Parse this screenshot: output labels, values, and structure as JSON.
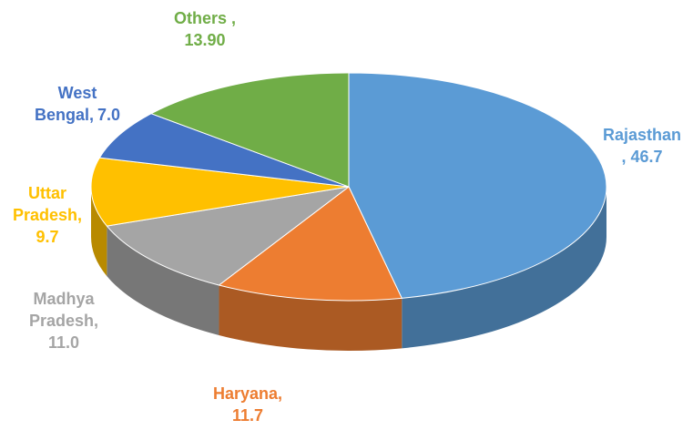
{
  "chart_data": {
    "type": "pie",
    "categories": [
      "Rajasthan",
      "Haryana,",
      "Madhya Pradesh,",
      "Uttar Pradesh,",
      "West Bengal,",
      "Others ,"
    ],
    "values": [
      46.7,
      11.7,
      11.0,
      9.7,
      7.0,
      13.9
    ],
    "value_labels": [
      ", 46.7",
      "11.7",
      "11.0",
      "9.7",
      "7.0",
      "13.90"
    ],
    "colors": [
      "#5b9bd5",
      "#ed7d31",
      "#a5a5a5",
      "#ffc000",
      "#4472c4",
      "#70ad47"
    ]
  }
}
